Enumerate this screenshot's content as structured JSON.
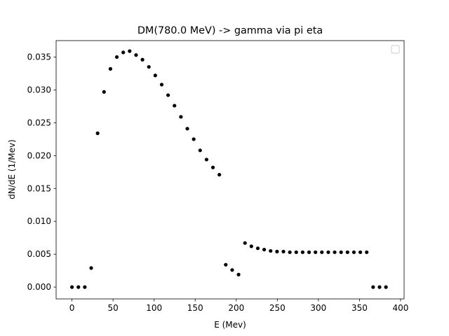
{
  "chart_data": {
    "type": "scatter",
    "title": "DM(780.0 MeV) -> gamma via pi eta",
    "xlabel": "E (Mev)",
    "ylabel": "dN/dE (1/Mev)",
    "xlim": [
      -19.3,
      404.3
    ],
    "ylim": [
      -0.0018,
      0.0375
    ],
    "xticks": [
      0,
      50,
      100,
      150,
      200,
      250,
      300,
      350,
      400
    ],
    "yticks": [
      0.0,
      0.005,
      0.01,
      0.015,
      0.02,
      0.025,
      0.03,
      0.035
    ],
    "ytick_format_decimals": 3,
    "grid": false,
    "legend": {
      "placement": "top-right",
      "entries": []
    },
    "marker_color": "#000000",
    "series": [
      {
        "x": [
          0,
          7.8,
          15.6,
          23.4,
          31.2,
          39.0,
          46.8,
          54.6,
          62.4,
          70.2,
          78.0,
          85.8,
          93.6,
          101.4,
          109.2,
          117.0,
          124.8,
          132.6,
          140.4,
          148.2,
          156.0,
          163.8,
          171.6,
          179.4,
          187.2,
          195.0,
          202.8,
          210.6,
          218.4,
          226.2,
          234.0,
          241.8,
          249.6,
          257.4,
          265.2,
          273.0,
          280.8,
          288.6,
          296.4,
          304.2,
          312.0,
          319.8,
          327.6,
          335.4,
          343.2,
          351.0,
          358.8,
          366.6,
          374.4,
          382.2
        ],
        "y": [
          0.0,
          0.0,
          0.0,
          0.0029,
          0.0234,
          0.0297,
          0.0332,
          0.035,
          0.0357,
          0.0359,
          0.0353,
          0.0346,
          0.0335,
          0.0322,
          0.0308,
          0.0292,
          0.0276,
          0.0259,
          0.0241,
          0.0225,
          0.0208,
          0.0194,
          0.0182,
          0.0171,
          0.0034,
          0.0026,
          0.0019,
          0.0067,
          0.0062,
          0.0059,
          0.0057,
          0.0055,
          0.0054,
          0.0054,
          0.0053,
          0.0053,
          0.0053,
          0.0053,
          0.0053,
          0.0053,
          0.0053,
          0.0053,
          0.0053,
          0.0053,
          0.0053,
          0.0053,
          0.0053,
          0.0,
          0.0,
          0.0
        ]
      }
    ]
  }
}
